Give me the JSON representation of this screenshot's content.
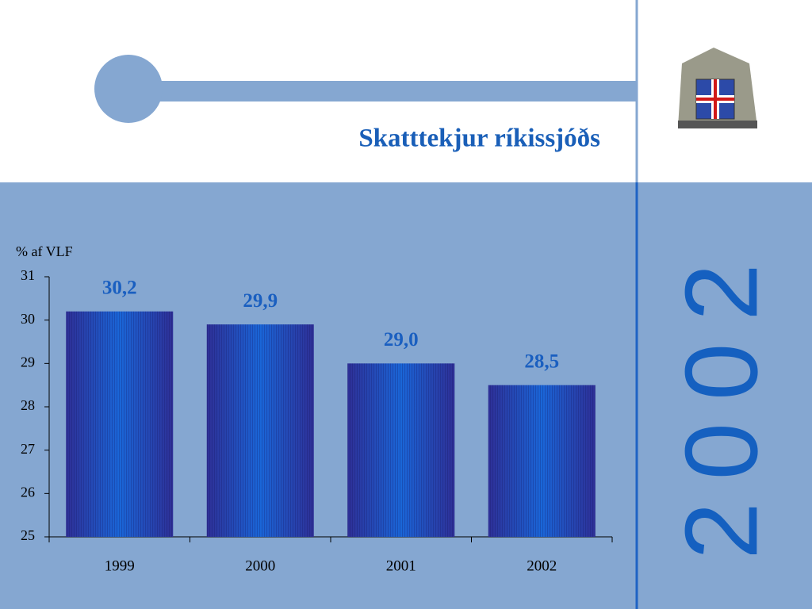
{
  "chart_data": {
    "type": "bar",
    "title": "Skatttekjur ríkissjóðs",
    "ylabel": "% af VLF",
    "categories": [
      "1999",
      "2000",
      "2001",
      "2002"
    ],
    "values": [
      30.2,
      29.9,
      29.0,
      28.5
    ],
    "value_labels": [
      "30,2",
      "29,9",
      "29,0",
      "28,5"
    ],
    "color": "#2f3fa8",
    "ylim": [
      25,
      31
    ],
    "yticks": [
      25,
      26,
      27,
      28,
      29,
      30,
      31
    ],
    "grid": false
  },
  "slide": {
    "banner": "2002"
  }
}
